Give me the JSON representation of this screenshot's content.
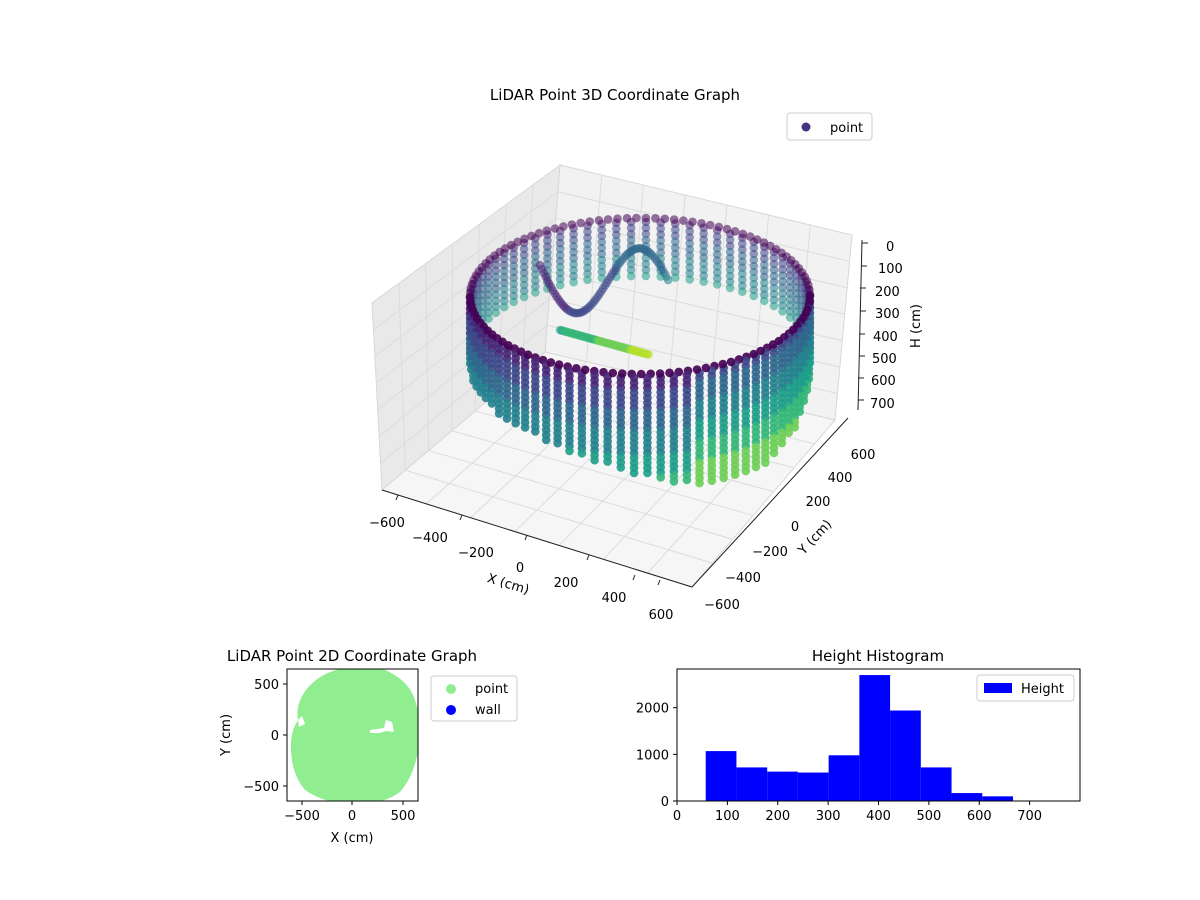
{
  "chart_data": [
    {
      "type": "scatter3d",
      "title": "LiDAR Point 3D Coordinate Graph",
      "xlabel": "X (cm)",
      "ylabel": "Y (cm)",
      "zlabel": "H (cm)",
      "x_ticks": [
        "−600",
        "−400",
        "−200",
        "0",
        "200",
        "400",
        "600"
      ],
      "y_ticks": [
        "−600",
        "−400",
        "−200",
        "0",
        "200",
        "400",
        "600"
      ],
      "z_ticks": [
        "0",
        "100",
        "200",
        "300",
        "400",
        "500",
        "600",
        "700"
      ],
      "xlim": [
        -650,
        650
      ],
      "ylim": [
        -650,
        650
      ],
      "zlim": [
        0,
        780
      ],
      "z_inverted": true,
      "colormap": "viridis",
      "legend": {
        "entries": [
          "point"
        ],
        "position": "upper-right"
      },
      "colors": {
        "legend_marker": "#46327e"
      }
    },
    {
      "type": "scatter",
      "title": "LiDAR Point 2D Coordinate Graph",
      "xlabel": "X (cm)",
      "ylabel": "Y (cm)",
      "x_ticks": [
        "−500",
        "0",
        "500"
      ],
      "y_ticks": [
        "500",
        "0",
        "−500"
      ],
      "xlim": [
        -650,
        650
      ],
      "ylim": [
        -650,
        650
      ],
      "series": [
        {
          "name": "point",
          "color": "#90ee90"
        },
        {
          "name": "wall",
          "color": "#0000ff"
        }
      ],
      "legend": {
        "position": "outside-right"
      }
    },
    {
      "type": "bar",
      "title": "Height Histogram",
      "x_ticks": [
        "0",
        "100",
        "200",
        "300",
        "400",
        "500",
        "600",
        "700"
      ],
      "y_ticks": [
        "0",
        "1000",
        "2000"
      ],
      "xlim": [
        0,
        800
      ],
      "ylim": [
        0,
        2830
      ],
      "bin_edges": [
        57,
        118,
        179,
        240,
        301,
        362,
        423,
        484,
        545,
        606,
        667
      ],
      "values": [
        1070,
        720,
        630,
        610,
        980,
        2700,
        1940,
        720,
        170,
        100
      ],
      "series": [
        {
          "name": "Height",
          "color": "#0000ff"
        }
      ],
      "legend": {
        "position": "upper-right"
      }
    }
  ]
}
